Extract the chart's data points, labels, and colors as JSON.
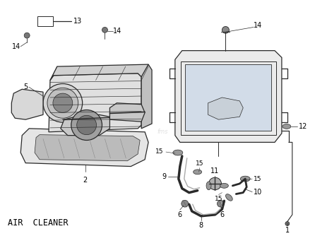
{
  "title": "AIR  CLEANER",
  "bg_color": "#ffffff",
  "line_color": "#2a2a2a",
  "text_color": "#000000",
  "label_fontsize": 7,
  "title_fontsize": 8.5,
  "watermark": "fms"
}
